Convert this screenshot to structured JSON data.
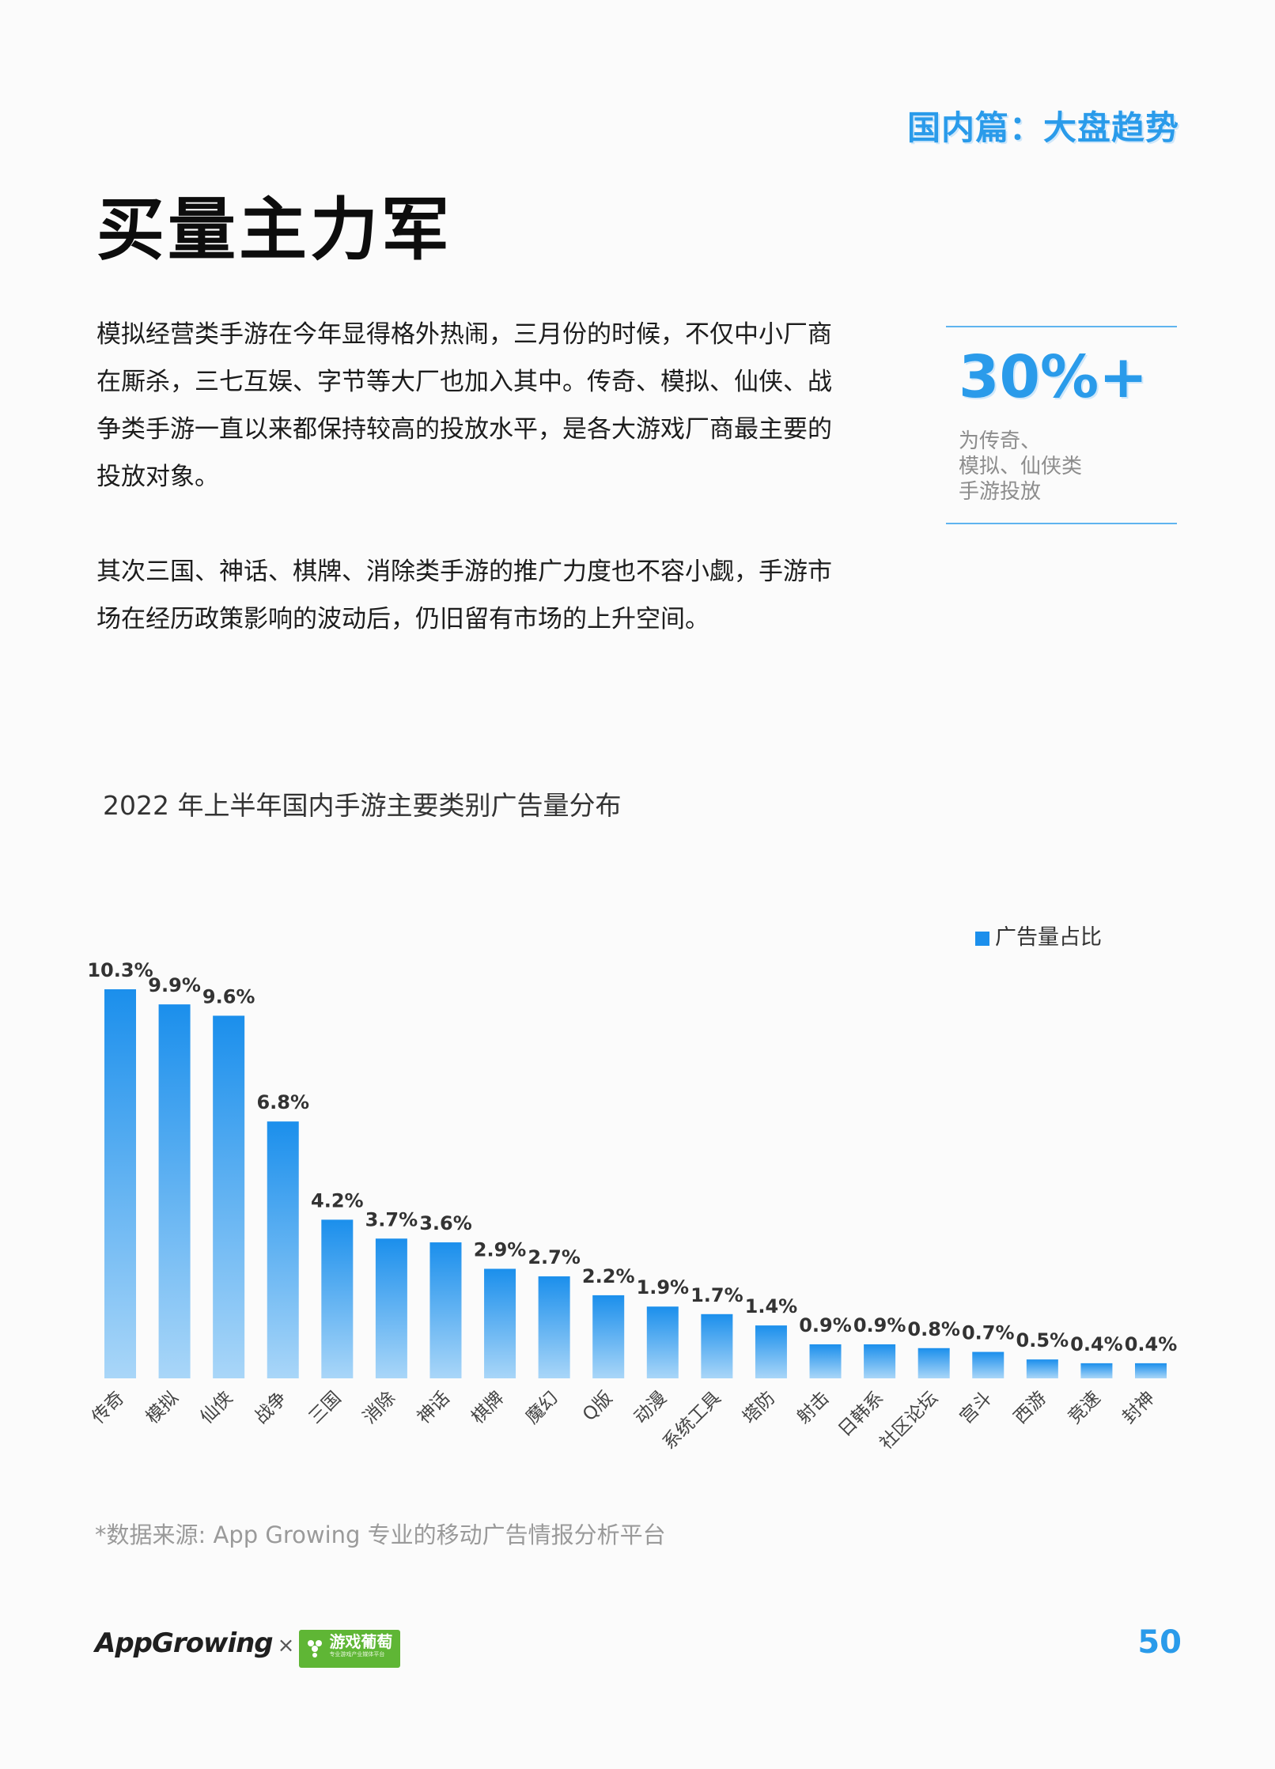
{
  "header": {
    "section_tag": "国内篇：大盘趋势",
    "page_title": "买量主力军"
  },
  "body": {
    "para1": "模拟经营类手游在今年显得格外热闹，三月份的时候，不仅中小厂商在厮杀，三七互娱、字节等大厂也加入其中。传奇、模拟、仙侠、战争类手游一直以来都保持较高的投放水平，是各大游戏厂商最主要的投放对象。",
    "para2": "其次三国、神话、棋牌、消除类手游的推广力度也不容小觑，手游市场在经历政策影响的波动后，仍旧留有市场的上升空间。"
  },
  "stat": {
    "value": "30%+",
    "desc_lines": [
      "为传奇、",
      "模拟、仙侠类",
      "手游投放"
    ]
  },
  "chart_data": {
    "type": "bar",
    "title": "2022 年上半年国内手游主要类别广告量分布",
    "categories": [
      "传奇",
      "模拟",
      "仙侠",
      "战争",
      "三国",
      "消除",
      "神话",
      "棋牌",
      "魔幻",
      "Q版",
      "动漫",
      "系统工具",
      "塔防",
      "射击",
      "日韩系",
      "社区论坛",
      "宫斗",
      "西游",
      "竞速",
      "封神"
    ],
    "series": [
      {
        "name": "广告量占比",
        "values": [
          10.3,
          9.9,
          9.6,
          6.8,
          4.2,
          3.7,
          3.6,
          2.9,
          2.7,
          2.2,
          1.9,
          1.7,
          1.4,
          0.9,
          0.9,
          0.8,
          0.7,
          0.5,
          0.4,
          0.4
        ]
      }
    ],
    "data_labels": [
      "10.3%",
      "9.9%",
      "9.6%",
      "6.8%",
      "4.2%",
      "3.7%",
      "3.6%",
      "2.9%",
      "2.7%",
      "2.2%",
      "1.9%",
      "1.7%",
      "1.4%",
      "0.9%",
      "0.9%",
      "0.8%",
      "0.7%",
      "0.5%",
      "0.4%",
      "0.4%"
    ],
    "ylim": [
      0,
      10.3
    ],
    "legend_position": "top-right",
    "grid": false,
    "colors": {
      "bar_top": "#1b8fec",
      "bar_bottom": "#a9d6f8",
      "legend": "#1b8fec"
    }
  },
  "source": "*数据来源: App Growing 专业的移动广告情报分析平台",
  "footer": {
    "logo_app": "App",
    "logo_growing": "Growing",
    "times": "×",
    "partner_name": "游戏葡萄",
    "partner_tagline": "专业游戏产业媒体平台",
    "page_number": "50"
  }
}
